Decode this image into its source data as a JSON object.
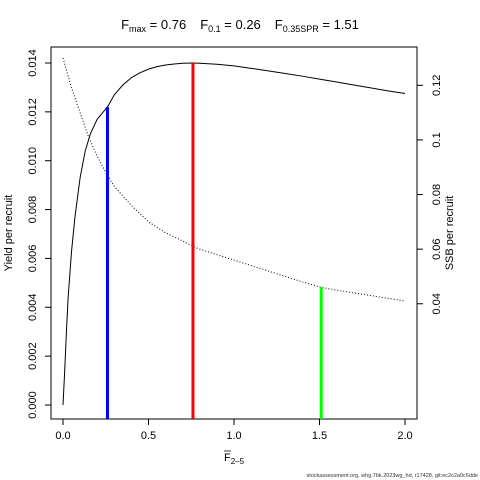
{
  "title": {
    "fmax_label": "F",
    "fmax_sub": "max",
    "fmax_value": " = 0.76",
    "f01_label": "F",
    "f01_sub": "0.1",
    "f01_value": " = 0.26",
    "fspr_label": "F",
    "fspr_sub": "0.35SPR",
    "fspr_value": " = 1.51"
  },
  "footer": "stockassessment.org, whg.7bk.2023wg_hd, r17428, git:ec2c2a0c6dde",
  "chart_data": {
    "type": "line",
    "xlabel_main": "F",
    "xlabel_sub": "2–5",
    "ylabel_left": "Yield per recruit",
    "ylabel_right": "SSB per recruit",
    "xlim": [
      0,
      2
    ],
    "ylim_left": [
      0,
      0.014
    ],
    "ylim_right": [
      0,
      0.13
    ],
    "x_ticks": [
      {
        "value": 0,
        "label": "0.0"
      },
      {
        "value": 0.5,
        "label": "0.5"
      },
      {
        "value": 1.0,
        "label": "1.0"
      },
      {
        "value": 1.5,
        "label": "1.5"
      },
      {
        "value": 2.0,
        "label": "2.0"
      }
    ],
    "y_left_ticks": [
      {
        "value": 0,
        "label": "0.000"
      },
      {
        "value": 0.002,
        "label": "0.002"
      },
      {
        "value": 0.004,
        "label": "0.004"
      },
      {
        "value": 0.006,
        "label": "0.006"
      },
      {
        "value": 0.008,
        "label": "0.008"
      },
      {
        "value": 0.01,
        "label": "0.010"
      },
      {
        "value": 0.012,
        "label": "0.012"
      },
      {
        "value": 0.014,
        "label": "0.014"
      }
    ],
    "y_right_ticks": [
      {
        "value": 0.04,
        "label": "0.04"
      },
      {
        "value": 0.06,
        "label": "0.06"
      },
      {
        "value": 0.08,
        "label": "0.08"
      },
      {
        "value": 0.1,
        "label": "0.1"
      },
      {
        "value": 0.12,
        "label": "0.12"
      }
    ],
    "series": [
      {
        "style": "solid",
        "axis": "left",
        "x": [
          0.0,
          0.01,
          0.02,
          0.03,
          0.05,
          0.07,
          0.1,
          0.13,
          0.16,
          0.2,
          0.26,
          0.3,
          0.35,
          0.4,
          0.45,
          0.5,
          0.55,
          0.6,
          0.65,
          0.7,
          0.76,
          0.8,
          0.9,
          1.0,
          1.1,
          1.2,
          1.3,
          1.4,
          1.5,
          1.6,
          1.7,
          1.8,
          1.9,
          2.0
        ],
        "y": [
          0.0,
          0.0014,
          0.003,
          0.0044,
          0.0063,
          0.0077,
          0.0093,
          0.0104,
          0.0111,
          0.0117,
          0.0122,
          0.0127,
          0.0131,
          0.0134,
          0.0136,
          0.01375,
          0.01385,
          0.01392,
          0.01396,
          0.01399,
          0.014,
          0.01399,
          0.01395,
          0.01388,
          0.01378,
          0.01368,
          0.01357,
          0.01346,
          0.01334,
          0.01322,
          0.0131,
          0.01298,
          0.01286,
          0.01275
        ]
      },
      {
        "style": "dotted",
        "axis": "right",
        "x": [
          0.0,
          0.05,
          0.1,
          0.15,
          0.2,
          0.26,
          0.3,
          0.4,
          0.5,
          0.6,
          0.7,
          0.76,
          0.8,
          0.9,
          1.0,
          1.1,
          1.2,
          1.3,
          1.4,
          1.51,
          1.6,
          1.7,
          1.8,
          1.9,
          2.0
        ],
        "y": [
          0.13,
          0.119,
          0.11,
          0.101,
          0.094,
          0.087,
          0.083,
          0.076,
          0.07,
          0.066,
          0.063,
          0.061,
          0.06,
          0.058,
          0.056,
          0.054,
          0.052,
          0.05,
          0.048,
          0.046,
          0.045,
          0.044,
          0.043,
          0.042,
          0.041
        ]
      }
    ],
    "reference_lines": [
      {
        "name": "F0.1",
        "x": 0.26,
        "y_top": 0.0122,
        "axis": "left",
        "color": "#0000ff"
      },
      {
        "name": "Fmax",
        "x": 0.76,
        "y_top": 0.014,
        "axis": "left",
        "color": "#ff0000"
      },
      {
        "name": "F0.35SPR",
        "x": 1.51,
        "y_top": 0.046,
        "axis": "right",
        "color": "#00ff00"
      }
    ]
  }
}
